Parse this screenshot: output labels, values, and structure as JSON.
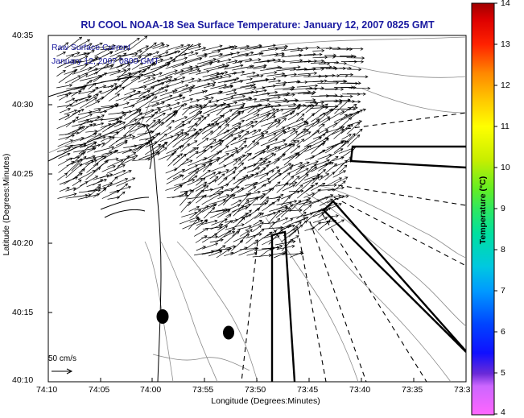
{
  "title": "RU COOL  NOAA-18  Sea Surface Temperature:  January 12, 2007 0825 GMT",
  "legend": {
    "line1": "Raw Surface Current",
    "line2": "January 12, 2007 0800 GMT"
  },
  "axes": {
    "xlabel": "Longitude (Degrees:Minutes)",
    "ylabel": "Latitude (Degrees:Minutes)",
    "xticks": [
      "74:10",
      "74:05",
      "74:00",
      "73:55",
      "73:50",
      "73:45",
      "73:40",
      "73:35",
      "73:3"
    ],
    "yticks": [
      "40:35",
      "40:30",
      "40:25",
      "40:20",
      "40:15",
      "40:10"
    ]
  },
  "colorbar": {
    "label": "Temperature (°C)",
    "ticks": [
      "14",
      "13",
      "12",
      "11",
      "10",
      "9",
      "8",
      "7",
      "6",
      "5",
      "4"
    ],
    "min": 4,
    "max": 14
  },
  "scale": {
    "label": "50 cm/s"
  },
  "colors": {
    "title": "#1a1aa0",
    "arrows": "#000000",
    "contours": "#888888"
  }
}
